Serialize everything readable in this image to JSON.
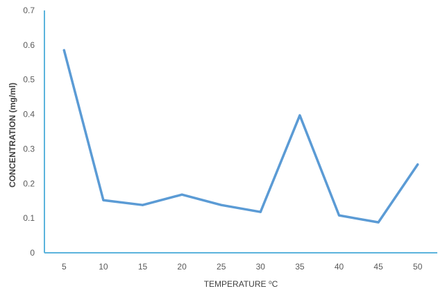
{
  "chart_data": {
    "type": "line",
    "title": "",
    "xlabel": "TEMPERATURE ⁰C",
    "ylabel": "CONCENTRATION (mg/ml)",
    "x": [
      5,
      10,
      15,
      20,
      25,
      30,
      35,
      40,
      45,
      50
    ],
    "x_tick_labels": [
      "5",
      "10",
      "15",
      "20",
      "25",
      "30",
      "35",
      "40",
      "45",
      "50"
    ],
    "y_tick_labels": [
      "0",
      "0.1",
      "0.2",
      "0.3",
      "0.4",
      "0.5",
      "0.6",
      "0.7"
    ],
    "y_ticks": [
      0,
      0.1,
      0.2,
      0.3,
      0.4,
      0.5,
      0.6,
      0.7
    ],
    "ylim": [
      0,
      0.7
    ],
    "grid": false,
    "legend": "none",
    "series": [
      {
        "values": [
          0.585,
          0.152,
          0.138,
          0.168,
          0.138,
          0.118,
          0.397,
          0.108,
          0.088,
          0.255
        ],
        "color": "#5b9bd5"
      }
    ],
    "axis_color": "#5bb3dc"
  }
}
